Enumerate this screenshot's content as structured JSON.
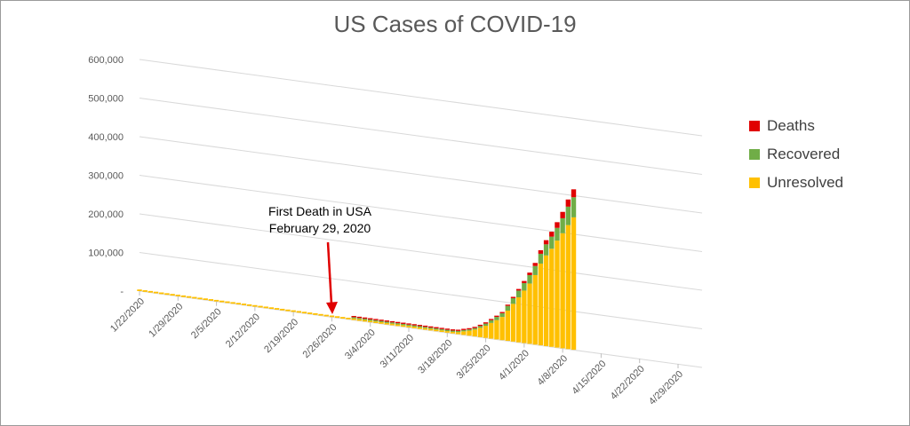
{
  "chart_data": {
    "type": "bar",
    "stacked": true,
    "title": "US Cases of COVID-19",
    "xlabel": "",
    "ylabel": "",
    "ylim": [
      0,
      600000
    ],
    "y_ticks": [
      "-",
      "100,000",
      "200,000",
      "300,000",
      "400,000",
      "500,000",
      "600,000"
    ],
    "x_tick_labels": [
      "1/22/2020",
      "1/29/2020",
      "2/5/2020",
      "2/12/2020",
      "2/19/2020",
      "2/26/2020",
      "3/4/2020",
      "3/11/2020",
      "3/18/2020",
      "3/25/2020",
      "4/1/2020",
      "4/8/2020",
      "4/15/2020",
      "4/22/2020",
      "4/29/2020"
    ],
    "grid": true,
    "legend_position": "right",
    "series": [
      {
        "name": "Deaths",
        "color": "#e00000",
        "values": [
          0,
          0,
          0,
          0,
          0,
          0,
          0,
          0,
          0,
          0,
          0,
          0,
          0,
          0,
          0,
          0,
          0,
          0,
          0,
          0,
          0,
          0,
          0,
          0,
          0,
          0,
          0,
          0,
          0,
          0,
          0,
          0,
          0,
          0,
          0,
          0,
          0,
          0,
          0,
          1,
          1,
          6,
          7,
          11,
          12,
          14,
          17,
          21,
          22,
          28,
          36,
          41,
          49,
          58,
          73,
          99,
          133,
          164,
          258,
          349,
          442,
          586,
          786,
          1008,
          1316,
          1726,
          2265,
          2731,
          3420,
          4192,
          5367,
          6501,
          7921,
          9246,
          10783,
          12722,
          14695,
          16478,
          18586,
          20463
        ]
      },
      {
        "name": "Recovered",
        "color": "#70ad47",
        "values": [
          0,
          0,
          0,
          0,
          0,
          0,
          0,
          0,
          0,
          0,
          0,
          0,
          0,
          0,
          0,
          0,
          0,
          0,
          0,
          0,
          0,
          0,
          0,
          0,
          0,
          0,
          0,
          0,
          0,
          0,
          0,
          0,
          0,
          0,
          0,
          0,
          0,
          0,
          0,
          7,
          7,
          7,
          7,
          7,
          7,
          7,
          7,
          8,
          8,
          8,
          8,
          12,
          17,
          106,
          125,
          171,
          178,
          348,
          361,
          1072,
          2665,
          3600,
          4562,
          5644,
          7024,
          8474,
          9707,
          12283,
          14652,
          17448,
          19581,
          21763,
          23559,
          25410,
          28790,
          31270,
          32988,
          38820,
          47763,
          52096
        ]
      },
      {
        "name": "Unresolved",
        "color": "#ffc000",
        "values": [
          1,
          1,
          2,
          2,
          5,
          5,
          5,
          5,
          5,
          6,
          7,
          8,
          11,
          11,
          11,
          12,
          12,
          13,
          13,
          13,
          13,
          13,
          13,
          13,
          13,
          13,
          13,
          15,
          15,
          15,
          15,
          15,
          15,
          15,
          15,
          15,
          15,
          16,
          16,
          16,
          24,
          28,
          43,
          60,
          85,
          104,
          192,
          233,
          359,
          468,
          521,
          693,
          929,
          1250,
          1630,
          2003,
          2840,
          3450,
          5190,
          9350,
          12960,
          17880,
          24320,
          31460,
          40700,
          49750,
          59990,
          78300,
          97850,
          116600,
          135900,
          156200,
          180000,
          211700,
          234700,
          254000,
          277000,
          298000,
          321000,
          343000
        ]
      }
    ],
    "annotation": {
      "lines": [
        "First Death in USA",
        "February 29, 2020"
      ],
      "date": "2/29/2020"
    }
  }
}
